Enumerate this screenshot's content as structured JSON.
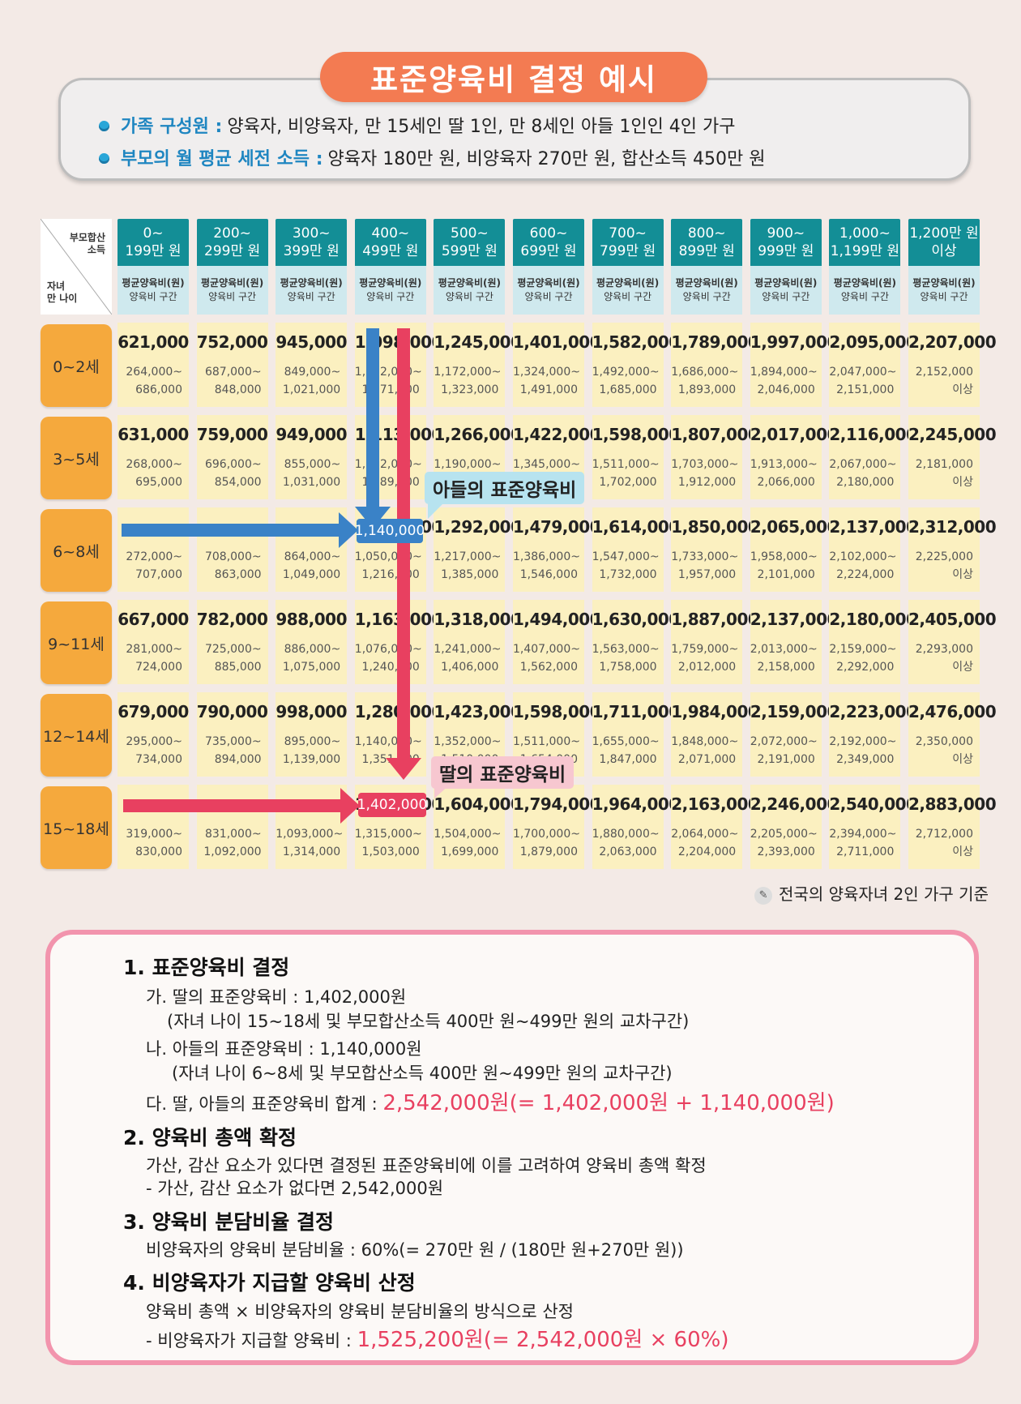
{
  "header": {
    "title": "표준양육비 결정 예시",
    "line1_label": "가족 구성원",
    "line1_text": "양육자, 비양육자, 만 15세인 딸 1인, 만 8세인 아들 1인인 4인 가구",
    "line2_label": "부모의 월 평균 세전 소득",
    "line2_text": "양육자 180만 원, 비양육자 270만 원, 합산소득 450만 원"
  },
  "table": {
    "corner_top": "부모합산\n소득",
    "corner_bottom": "자녀\n만 나이",
    "sub_line1": "평균양육비(원)",
    "sub_line2": "양육비 구간",
    "columns": [
      {
        "l1": "0~",
        "l2": "199만 원"
      },
      {
        "l1": "200~",
        "l2": "299만 원"
      },
      {
        "l1": "300~",
        "l2": "399만 원"
      },
      {
        "l1": "400~",
        "l2": "499만 원"
      },
      {
        "l1": "500~",
        "l2": "599만 원"
      },
      {
        "l1": "600~",
        "l2": "699만 원"
      },
      {
        "l1": "700~",
        "l2": "799만 원"
      },
      {
        "l1": "800~",
        "l2": "899만 원"
      },
      {
        "l1": "900~",
        "l2": "999만 원"
      },
      {
        "l1": "1,000~",
        "l2": "1,199만 원"
      },
      {
        "l1": "1,200만 원",
        "l2": "이상"
      }
    ],
    "rows": [
      {
        "age": "0~2세",
        "cells": [
          {
            "avg": "621,000",
            "r1": "264,000~",
            "r2": "686,000"
          },
          {
            "avg": "752,000",
            "r1": "687,000~",
            "r2": "848,000"
          },
          {
            "avg": "945,000",
            "r1": "849,000~",
            "r2": "1,021,000"
          },
          {
            "avg": "1,098,000",
            "r1": "1,022,000~",
            "r2": "1,171,000"
          },
          {
            "avg": "1,245,000",
            "r1": "1,172,000~",
            "r2": "1,323,000"
          },
          {
            "avg": "1,401,000",
            "r1": "1,324,000~",
            "r2": "1,491,000"
          },
          {
            "avg": "1,582,000",
            "r1": "1,492,000~",
            "r2": "1,685,000"
          },
          {
            "avg": "1,789,000",
            "r1": "1,686,000~",
            "r2": "1,893,000"
          },
          {
            "avg": "1,997,000",
            "r1": "1,894,000~",
            "r2": "2,046,000"
          },
          {
            "avg": "2,095,000",
            "r1": "2,047,000~",
            "r2": "2,151,000"
          },
          {
            "avg": "2,207,000",
            "r1": "2,152,000",
            "r2": "이상"
          }
        ]
      },
      {
        "age": "3~5세",
        "cells": [
          {
            "avg": "631,000",
            "r1": "268,000~",
            "r2": "695,000"
          },
          {
            "avg": "759,000",
            "r1": "696,000~",
            "r2": "854,000"
          },
          {
            "avg": "949,000",
            "r1": "855,000~",
            "r2": "1,031,000"
          },
          {
            "avg": "1,113,000",
            "r1": "1,032,000~",
            "r2": "1,189,000"
          },
          {
            "avg": "1,266,000",
            "r1": "1,190,000~",
            "r2": "1,344,000"
          },
          {
            "avg": "1,422,000",
            "r1": "1,345,000~",
            "r2": "1,510,000"
          },
          {
            "avg": "1,598,000",
            "r1": "1,511,000~",
            "r2": "1,702,000"
          },
          {
            "avg": "1,807,000",
            "r1": "1,703,000~",
            "r2": "1,912,000"
          },
          {
            "avg": "2,017,000",
            "r1": "1,913,000~",
            "r2": "2,066,000"
          },
          {
            "avg": "2,116,000",
            "r1": "2,067,000~",
            "r2": "2,180,000"
          },
          {
            "avg": "2,245,000",
            "r1": "2,181,000",
            "r2": "이상"
          }
        ]
      },
      {
        "age": "6~8세",
        "cells": [
          {
            "avg": "",
            "r1": "272,000~",
            "r2": "707,000"
          },
          {
            "avg": "",
            "r1": "708,000~",
            "r2": "863,000"
          },
          {
            "avg": "",
            "r1": "864,000~",
            "r2": "1,049,000"
          },
          {
            "avg": "1,140,000",
            "r1": "1,050,000~",
            "r2": "1,216,000"
          },
          {
            "avg": "1,292,000",
            "r1": "1,217,000~",
            "r2": "1,385,000"
          },
          {
            "avg": "1,479,000",
            "r1": "1,386,000~",
            "r2": "1,546,000"
          },
          {
            "avg": "1,614,000",
            "r1": "1,547,000~",
            "r2": "1,732,000"
          },
          {
            "avg": "1,850,000",
            "r1": "1,733,000~",
            "r2": "1,957,000"
          },
          {
            "avg": "2,065,000",
            "r1": "1,958,000~",
            "r2": "2,101,000"
          },
          {
            "avg": "2,137,000",
            "r1": "2,102,000~",
            "r2": "2,224,000"
          },
          {
            "avg": "2,312,000",
            "r1": "2,225,000",
            "r2": "이상"
          }
        ]
      },
      {
        "age": "9~11세",
        "cells": [
          {
            "avg": "667,000",
            "r1": "281,000~",
            "r2": "724,000"
          },
          {
            "avg": "782,000",
            "r1": "725,000~",
            "r2": "885,000"
          },
          {
            "avg": "988,000",
            "r1": "886,000~",
            "r2": "1,075,000"
          },
          {
            "avg": "1,163,000",
            "r1": "1,076,000~",
            "r2": "1,240,000"
          },
          {
            "avg": "1,318,000",
            "r1": "1,241,000~",
            "r2": "1,406,000"
          },
          {
            "avg": "1,494,000",
            "r1": "1,407,000~",
            "r2": "1,562,000"
          },
          {
            "avg": "1,630,000",
            "r1": "1,563,000~",
            "r2": "1,758,000"
          },
          {
            "avg": "1,887,000",
            "r1": "1,759,000~",
            "r2": "2,012,000"
          },
          {
            "avg": "2,137,000",
            "r1": "2,013,000~",
            "r2": "2,158,000"
          },
          {
            "avg": "2,180,000",
            "r1": "2,159,000~",
            "r2": "2,292,000"
          },
          {
            "avg": "2,405,000",
            "r1": "2,293,000",
            "r2": "이상"
          }
        ]
      },
      {
        "age": "12~14세",
        "cells": [
          {
            "avg": "679,000",
            "r1": "295,000~",
            "r2": "734,000"
          },
          {
            "avg": "790,000",
            "r1": "735,000~",
            "r2": "894,000"
          },
          {
            "avg": "998,000",
            "r1": "895,000~",
            "r2": "1,139,000"
          },
          {
            "avg": "1,280,000",
            "r1": "1,140,000~",
            "r2": "1,351,000"
          },
          {
            "avg": "1,423,000",
            "r1": "1,352,000~",
            "r2": "1,510,000"
          },
          {
            "avg": "1,598,000",
            "r1": "1,511,000~",
            "r2": "1,654,000"
          },
          {
            "avg": "1,711,000",
            "r1": "1,655,000~",
            "r2": "1,847,000"
          },
          {
            "avg": "1,984,000",
            "r1": "1,848,000~",
            "r2": "2,071,000"
          },
          {
            "avg": "2,159,000",
            "r1": "2,072,000~",
            "r2": "2,191,000"
          },
          {
            "avg": "2,223,000",
            "r1": "2,192,000~",
            "r2": "2,349,000"
          },
          {
            "avg": "2,476,000",
            "r1": "2,350,000",
            "r2": "이상"
          }
        ]
      },
      {
        "age": "15~18세",
        "cells": [
          {
            "avg": "",
            "r1": "319,000~",
            "r2": "830,000"
          },
          {
            "avg": "",
            "r1": "831,000~",
            "r2": "1,092,000"
          },
          {
            "avg": "",
            "r1": "1,093,000~",
            "r2": "1,314,000"
          },
          {
            "avg": "1,402,000",
            "r1": "1,315,000~",
            "r2": "1,503,000"
          },
          {
            "avg": "1,604,000",
            "r1": "1,504,000~",
            "r2": "1,699,000"
          },
          {
            "avg": "1,794,000",
            "r1": "1,700,000~",
            "r2": "1,879,000"
          },
          {
            "avg": "1,964,000",
            "r1": "1,880,000~",
            "r2": "2,063,000"
          },
          {
            "avg": "2,163,000",
            "r1": "2,064,000~",
            "r2": "2,204,000"
          },
          {
            "avg": "2,246,000",
            "r1": "2,205,000~",
            "r2": "2,393,000"
          },
          {
            "avg": "2,540,000",
            "r1": "2,394,000~",
            "r2": "2,711,000"
          },
          {
            "avg": "2,883,000",
            "r1": "2,712,000",
            "r2": "이상"
          }
        ]
      }
    ],
    "son_badge": "1,140,000",
    "daughter_badge": "1,402,000",
    "son_callout": "아들의 표준양육비",
    "daughter_callout": "딸의 표준양육비",
    "note": "전국의 양육자녀 2인 가구 기준",
    "colors": {
      "header": "#138e96",
      "sub": "#cfe9ee",
      "age": "#f5a93d",
      "cell": "#fbf0c0",
      "son_arrow": "#3a82c7",
      "daughter_arrow": "#e84060"
    }
  },
  "steps": {
    "s1_title": "1. 표준양육비 결정",
    "s1_a": "가. 딸의 표준양육비 : 1,402,000원",
    "s1_a_note": "(자녀 나이 15~18세 및 부모합산소득 400만 원~499만 원의 교차구간)",
    "s1_b": "나. 아들의 표준양육비 : 1,140,000원",
    "s1_b_note": "(자녀 나이 6~8세 및 부모합산소득 400만 원~499만 원의 교차구간)",
    "s1_c_label": "다. 딸, 아들의 표준양육비 합계 : ",
    "s1_c_value": "2,542,000원(= 1,402,000원 + 1,140,000원)",
    "s2_title": "2. 양육비 총액 확정",
    "s2_line1": "가산, 감산 요소가 있다면 결정된 표준양육비에 이를 고려하여 양육비 총액 확정",
    "s2_line2": "- 가산, 감산 요소가 없다면 2,542,000원",
    "s3_title": "3. 양육비 분담비율 결정",
    "s3_line1": "비양육자의 양육비 분담비율 : 60%(= 270만 원 / (180만 원+270만 원))",
    "s4_title": "4. 비양육자가 지급할 양육비 산정",
    "s4_line1": "양육비 총액 × 비양육자의 양육비 분담비율의 방식으로 산정",
    "s4_line2_label": "- 비양육자가 지급할 양육비 : ",
    "s4_line2_value": "1,525,200원(= 2,542,000원 × 60%)"
  }
}
